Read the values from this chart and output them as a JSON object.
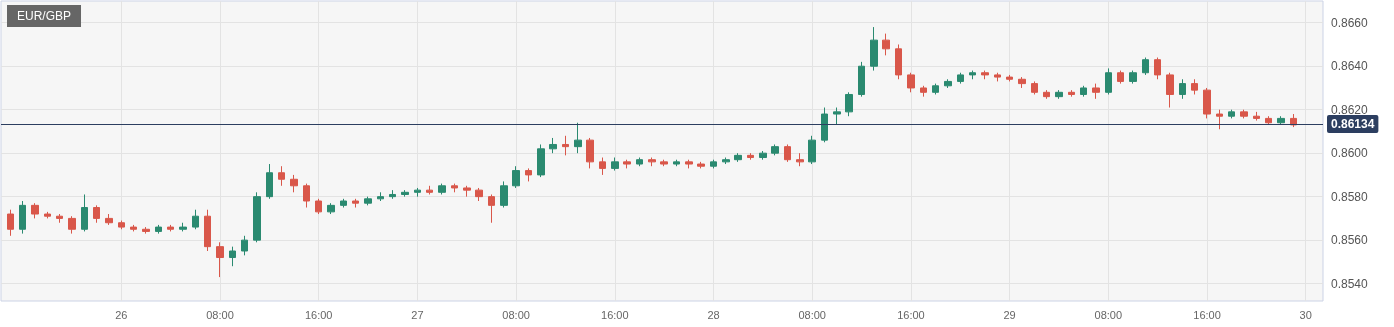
{
  "chart_data": {
    "type": "candlestick",
    "title": "EUR/GBP",
    "x": [
      "--09-25T15:00",
      "--09-25T16:00",
      "--09-25T17:00",
      "--09-25T18:00",
      "--09-25T19:00",
      "--09-25T20:00",
      "--09-25T21:00",
      "--09-25T22:00",
      "--09-25T23:00",
      "--09-26T00:00",
      "--09-26T01:00",
      "--09-26T02:00",
      "--09-26T03:00",
      "--09-26T04:00",
      "--09-26T05:00",
      "--09-26T06:00",
      "--09-26T07:00",
      "--09-26T08:00",
      "--09-26T09:00",
      "--09-26T10:00",
      "--09-26T11:00",
      "--09-26T12:00",
      "--09-26T13:00",
      "--09-26T14:00",
      "--09-26T15:00",
      "--09-26T16:00",
      "--09-26T17:00",
      "--09-26T18:00",
      "--09-26T19:00",
      "--09-26T20:00",
      "--09-26T21:00",
      "--09-26T22:00",
      "--09-26T23:00",
      "--09-27T00:00",
      "--09-27T01:00",
      "--09-27T02:00",
      "--09-27T03:00",
      "--09-27T04:00",
      "--09-27T05:00",
      "--09-27T06:00",
      "--09-27T07:00",
      "--09-27T08:00",
      "--09-27T09:00",
      "--09-27T10:00",
      "--09-27T11:00",
      "--09-27T12:00",
      "--09-27T13:00",
      "--09-27T14:00",
      "--09-27T15:00",
      "--09-27T16:00",
      "--09-27T17:00",
      "--09-27T18:00",
      "--09-27T19:00",
      "--09-27T20:00",
      "--09-27T21:00",
      "--09-27T22:00",
      "--09-27T23:00",
      "--09-28T00:00",
      "--09-28T01:00",
      "--09-28T02:00",
      "--09-28T03:00",
      "--09-28T04:00",
      "--09-28T05:00",
      "--09-28T06:00",
      "--09-28T07:00",
      "--09-28T08:00",
      "--09-28T09:00",
      "--09-28T10:00",
      "--09-28T11:00",
      "--09-28T12:00",
      "--09-28T13:00",
      "--09-28T14:00",
      "--09-28T15:00",
      "--09-28T16:00",
      "--09-28T17:00",
      "--09-28T18:00",
      "--09-28T19:00",
      "--09-28T20:00",
      "--09-28T21:00",
      "--09-28T22:00",
      "--09-28T23:00",
      "--09-29T00:00",
      "--09-29T01:00",
      "--09-29T02:00",
      "--09-29T03:00",
      "--09-29T04:00",
      "--09-29T05:00",
      "--09-29T06:00",
      "--09-29T07:00",
      "--09-29T08:00",
      "--09-29T09:00",
      "--09-29T10:00",
      "--09-29T11:00",
      "--09-29T12:00",
      "--09-29T13:00",
      "--09-29T14:00",
      "--09-29T15:00",
      "--09-29T16:00",
      "--09-29T17:00",
      "--09-29T18:00",
      "--09-29T19:00",
      "--09-29T20:00",
      "--09-29T21:00",
      "--09-29T22:00",
      "--09-29T23:00"
    ],
    "ohlc": [
      [
        0.8572,
        0.8574,
        0.8562,
        0.8565
      ],
      [
        0.8565,
        0.8578,
        0.8563,
        0.8576
      ],
      [
        0.8576,
        0.8577,
        0.857,
        0.8572
      ],
      [
        0.8572,
        0.8573,
        0.857,
        0.8571
      ],
      [
        0.8571,
        0.8572,
        0.8568,
        0.857
      ],
      [
        0.857,
        0.8571,
        0.8563,
        0.8565
      ],
      [
        0.8565,
        0.8581,
        0.8564,
        0.8575
      ],
      [
        0.8575,
        0.8576,
        0.8568,
        0.857
      ],
      [
        0.857,
        0.8572,
        0.8567,
        0.8568
      ],
      [
        0.8568,
        0.8569,
        0.8565,
        0.8566
      ],
      [
        0.8566,
        0.8567,
        0.8564,
        0.8565
      ],
      [
        0.8565,
        0.8566,
        0.8563,
        0.8564
      ],
      [
        0.8564,
        0.8567,
        0.8563,
        0.8566
      ],
      [
        0.8566,
        0.8567,
        0.8564,
        0.8565
      ],
      [
        0.8565,
        0.8568,
        0.8564,
        0.8566
      ],
      [
        0.8566,
        0.8574,
        0.8565,
        0.8571
      ],
      [
        0.8571,
        0.8574,
        0.8555,
        0.8557
      ],
      [
        0.8557,
        0.8559,
        0.8543,
        0.8552
      ],
      [
        0.8552,
        0.8557,
        0.8548,
        0.8555
      ],
      [
        0.8555,
        0.8562,
        0.8553,
        0.856
      ],
      [
        0.856,
        0.8582,
        0.8559,
        0.858
      ],
      [
        0.858,
        0.8595,
        0.8579,
        0.8591
      ],
      [
        0.8591,
        0.8594,
        0.8585,
        0.8588
      ],
      [
        0.8588,
        0.859,
        0.8582,
        0.8585
      ],
      [
        0.8585,
        0.8586,
        0.8575,
        0.8578
      ],
      [
        0.8578,
        0.8579,
        0.8572,
        0.8573
      ],
      [
        0.8573,
        0.8577,
        0.8572,
        0.8576
      ],
      [
        0.8576,
        0.8579,
        0.8575,
        0.8578
      ],
      [
        0.8578,
        0.8579,
        0.8575,
        0.8577
      ],
      [
        0.8577,
        0.858,
        0.8576,
        0.8579
      ],
      [
        0.8579,
        0.8582,
        0.8578,
        0.858
      ],
      [
        0.858,
        0.8583,
        0.8579,
        0.8581
      ],
      [
        0.8581,
        0.8583,
        0.858,
        0.8582
      ],
      [
        0.8582,
        0.8584,
        0.858,
        0.8583
      ],
      [
        0.8583,
        0.8585,
        0.8581,
        0.8582
      ],
      [
        0.8582,
        0.8586,
        0.8581,
        0.8585
      ],
      [
        0.8585,
        0.8586,
        0.8582,
        0.8584
      ],
      [
        0.8584,
        0.8585,
        0.858,
        0.8583
      ],
      [
        0.8583,
        0.8584,
        0.8578,
        0.858
      ],
      [
        0.858,
        0.8581,
        0.8568,
        0.8576
      ],
      [
        0.8576,
        0.8587,
        0.8575,
        0.8585
      ],
      [
        0.8585,
        0.8594,
        0.8584,
        0.8592
      ],
      [
        0.8592,
        0.8593,
        0.8587,
        0.859
      ],
      [
        0.859,
        0.8604,
        0.8589,
        0.8602
      ],
      [
        0.8602,
        0.8607,
        0.86,
        0.8604
      ],
      [
        0.8604,
        0.8608,
        0.8599,
        0.8603
      ],
      [
        0.8603,
        0.8614,
        0.86,
        0.8606
      ],
      [
        0.8606,
        0.8607,
        0.8593,
        0.8596
      ],
      [
        0.8596,
        0.8598,
        0.859,
        0.8593
      ],
      [
        0.8593,
        0.8598,
        0.8592,
        0.8596
      ],
      [
        0.8596,
        0.8597,
        0.8593,
        0.8595
      ],
      [
        0.8595,
        0.8598,
        0.8594,
        0.8597
      ],
      [
        0.8597,
        0.8598,
        0.8594,
        0.8596
      ],
      [
        0.8596,
        0.8597,
        0.8594,
        0.8595
      ],
      [
        0.8595,
        0.8597,
        0.8594,
        0.8596
      ],
      [
        0.8596,
        0.8597,
        0.8593,
        0.8595
      ],
      [
        0.8595,
        0.8596,
        0.8593,
        0.8594
      ],
      [
        0.8594,
        0.8597,
        0.8593,
        0.8596
      ],
      [
        0.8596,
        0.8598,
        0.8595,
        0.8597
      ],
      [
        0.8597,
        0.86,
        0.8596,
        0.8599
      ],
      [
        0.8599,
        0.86,
        0.8597,
        0.8598
      ],
      [
        0.8598,
        0.8601,
        0.8597,
        0.86
      ],
      [
        0.86,
        0.8604,
        0.8599,
        0.8603
      ],
      [
        0.8603,
        0.8604,
        0.8596,
        0.8597
      ],
      [
        0.8597,
        0.86,
        0.8594,
        0.8596
      ],
      [
        0.8596,
        0.8608,
        0.8595,
        0.8606
      ],
      [
        0.8606,
        0.8621,
        0.8605,
        0.8618
      ],
      [
        0.8618,
        0.8621,
        0.8613,
        0.8619
      ],
      [
        0.8619,
        0.8628,
        0.8617,
        0.8627
      ],
      [
        0.8627,
        0.8642,
        0.8626,
        0.864
      ],
      [
        0.864,
        0.8658,
        0.8638,
        0.8652
      ],
      [
        0.8652,
        0.8655,
        0.8645,
        0.8648
      ],
      [
        0.8648,
        0.865,
        0.8634,
        0.8636
      ],
      [
        0.8636,
        0.8637,
        0.8628,
        0.863
      ],
      [
        0.863,
        0.8631,
        0.8626,
        0.8628
      ],
      [
        0.8628,
        0.8632,
        0.8627,
        0.8631
      ],
      [
        0.8631,
        0.8634,
        0.863,
        0.8633
      ],
      [
        0.8633,
        0.8637,
        0.8632,
        0.8636
      ],
      [
        0.8636,
        0.8638,
        0.8634,
        0.8637
      ],
      [
        0.8637,
        0.8638,
        0.8634,
        0.8636
      ],
      [
        0.8636,
        0.8637,
        0.8633,
        0.8635
      ],
      [
        0.8635,
        0.8636,
        0.8633,
        0.8634
      ],
      [
        0.8634,
        0.8635,
        0.863,
        0.8632
      ],
      [
        0.8632,
        0.8633,
        0.8627,
        0.8628
      ],
      [
        0.8628,
        0.8629,
        0.8625,
        0.8626
      ],
      [
        0.8626,
        0.8629,
        0.8625,
        0.8628
      ],
      [
        0.8628,
        0.8629,
        0.8626,
        0.8627
      ],
      [
        0.8627,
        0.8631,
        0.8626,
        0.863
      ],
      [
        0.863,
        0.8632,
        0.8625,
        0.8628
      ],
      [
        0.8628,
        0.8639,
        0.8627,
        0.8637
      ],
      [
        0.8637,
        0.8638,
        0.8632,
        0.8633
      ],
      [
        0.8633,
        0.8638,
        0.8632,
        0.8637
      ],
      [
        0.8637,
        0.8644,
        0.8636,
        0.8643
      ],
      [
        0.8643,
        0.8644,
        0.8634,
        0.8636
      ],
      [
        0.8636,
        0.8637,
        0.8621,
        0.8627
      ],
      [
        0.8627,
        0.8634,
        0.8625,
        0.8632
      ],
      [
        0.8632,
        0.8634,
        0.8627,
        0.8629
      ],
      [
        0.8629,
        0.863,
        0.8616,
        0.8618
      ],
      [
        0.8618,
        0.862,
        0.8611,
        0.8617
      ],
      [
        0.8617,
        0.862,
        0.8616,
        0.8619
      ],
      [
        0.8619,
        0.862,
        0.8616,
        0.8617
      ],
      [
        0.8617,
        0.8619,
        0.8615,
        0.8616
      ],
      [
        0.8616,
        0.8617,
        0.8613,
        0.8614
      ],
      [
        0.8614,
        0.8617,
        0.8613,
        0.8616
      ],
      [
        0.8616,
        0.8618,
        0.8612,
        0.8613
      ]
    ],
    "colors": [
      "#d9574a",
      "#2a8a70",
      "#d9574a",
      "#d9574a",
      "#d9574a",
      "#d9574a",
      "#2a8a70",
      "#d9574a",
      "#d9574a",
      "#d9574a",
      "#d9574a",
      "#d9574a",
      "#2a8a70",
      "#d9574a",
      "#2a8a70",
      "#2a8a70",
      "#d9574a",
      "#d9574a",
      "#2a8a70",
      "#2a8a70",
      "#2a8a70",
      "#2a8a70",
      "#d9574a",
      "#d9574a",
      "#d9574a",
      "#d9574a",
      "#2a8a70",
      "#2a8a70",
      "#d9574a",
      "#2a8a70",
      "#2a8a70",
      "#2a8a70",
      "#2a8a70",
      "#2a8a70",
      "#d9574a",
      "#2a8a70",
      "#d9574a",
      "#d9574a",
      "#d9574a",
      "#d9574a",
      "#2a8a70",
      "#2a8a70",
      "#d9574a",
      "#2a8a70",
      "#2a8a70",
      "#d9574a",
      "#2a8a70",
      "#d9574a",
      "#d9574a",
      "#2a8a70",
      "#d9574a",
      "#2a8a70",
      "#d9574a",
      "#d9574a",
      "#2a8a70",
      "#d9574a",
      "#d9574a",
      "#2a8a70",
      "#2a8a70",
      "#2a8a70",
      "#d9574a",
      "#2a8a70",
      "#2a8a70",
      "#d9574a",
      "#d9574a",
      "#2a8a70",
      "#2a8a70",
      "#2a8a70",
      "#2a8a70",
      "#2a8a70",
      "#2a8a70",
      "#d9574a",
      "#d9574a",
      "#d9574a",
      "#d9574a",
      "#2a8a70",
      "#2a8a70",
      "#2a8a70",
      "#2a8a70",
      "#d9574a",
      "#d9574a",
      "#d9574a",
      "#d9574a",
      "#d9574a",
      "#d9574a",
      "#2a8a70",
      "#d9574a",
      "#2a8a70",
      "#d9574a",
      "#2a8a70",
      "#d9574a",
      "#2a8a70",
      "#2a8a70",
      "#d9574a",
      "#d9574a",
      "#2a8a70",
      "#d9574a",
      "#d9574a",
      "#d9574a",
      "#2a8a70",
      "#d9574a",
      "#d9574a",
      "#d9574a",
      "#2a8a70",
      "#d9574a"
    ],
    "xlim": [
      "--09-25T14:15",
      "--09-30T01:24"
    ],
    "xticks": [
      {
        "value": "--09-26",
        "label": "26"
      },
      {
        "value": "--09-26T08:00",
        "label": "08:00"
      },
      {
        "value": "--09-26T16:00",
        "label": "16:00"
      },
      {
        "value": "--09-27",
        "label": "27"
      },
      {
        "value": "--09-27T08:00",
        "label": "08:00"
      },
      {
        "value": "--09-27T16:00",
        "label": "16:00"
      },
      {
        "value": "--09-28",
        "label": "28"
      },
      {
        "value": "--09-28T08:00",
        "label": "08:00"
      },
      {
        "value": "--09-28T16:00",
        "label": "16:00"
      },
      {
        "value": "--09-29",
        "label": "29"
      },
      {
        "value": "--09-29T08:00",
        "label": "08:00"
      },
      {
        "value": "--09-29T16:00",
        "label": "16:00"
      },
      {
        "value": "--09-30",
        "label": "30"
      }
    ],
    "ylim": [
      0.8532,
      0.867
    ],
    "yticks": [
      {
        "value": 0.854,
        "label": "0.8540"
      },
      {
        "value": 0.856,
        "label": "0.8560"
      },
      {
        "value": 0.858,
        "label": "0.8580"
      },
      {
        "value": 0.86,
        "label": "0.8600"
      },
      {
        "value": 0.862,
        "label": "0.8620"
      },
      {
        "value": 0.864,
        "label": "0.8640"
      },
      {
        "value": 0.866,
        "label": "0.8660"
      }
    ],
    "ref_lines": [
      {
        "axis": "y",
        "value": 0.86134,
        "label": "0.86134",
        "color": "#2c3e60"
      }
    ],
    "grid": true
  }
}
